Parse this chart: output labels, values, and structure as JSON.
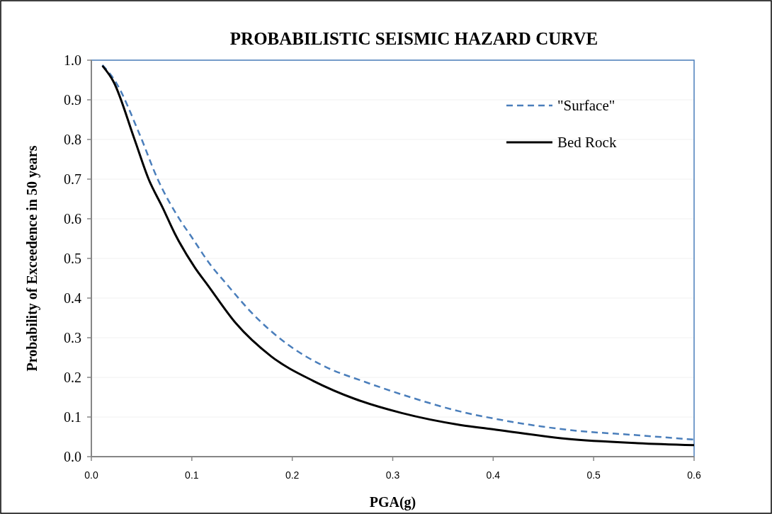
{
  "chart_data": {
    "type": "line",
    "title": "PROBABILISTIC SEISMIC HAZARD CURVE",
    "xlabel": "PGA(g)",
    "ylabel": "Probability of Exceedence in 50 years",
    "xlim": [
      0,
      0.6
    ],
    "xticks": [
      {
        "value": 0,
        "label": "0.0"
      },
      0.1,
      0.2,
      0.3,
      0.4,
      0.5,
      0.6
    ],
    "ylim": [
      0,
      1
    ],
    "yticks": [
      {
        "value": 0,
        "label": "0.0"
      },
      0.1,
      0.2,
      0.3,
      0.4,
      0.5,
      0.6,
      0.7,
      0.8,
      0.9,
      {
        "value": 1,
        "label": "1.0"
      }
    ],
    "grid": "y",
    "legend": "top right",
    "marker": "none",
    "series": [
      {
        "name": "\"Surface\"",
        "color": "#4a7ebb",
        "line_style": "dashed",
        "x": [
          0.011,
          0.024,
          0.048,
          0.066,
          0.088,
          0.099,
          0.12,
          0.132,
          0.163,
          0.196,
          0.231,
          0.273,
          0.32,
          0.367,
          0.403,
          0.473,
          0.544,
          0.6
        ],
        "values": [
          0.988,
          0.946,
          0.813,
          0.7,
          0.598,
          0.557,
          0.479,
          0.443,
          0.354,
          0.282,
          0.229,
          0.188,
          0.148,
          0.114,
          0.095,
          0.068,
          0.054,
          0.043
        ]
      },
      {
        "name": "Bed Rock",
        "color": "#000000",
        "line_style": "solid",
        "x": [
          0.011,
          0.022,
          0.043,
          0.057,
          0.071,
          0.083,
          0.103,
          0.116,
          0.144,
          0.179,
          0.221,
          0.262,
          0.309,
          0.367,
          0.403,
          0.473,
          0.544,
          0.6
        ],
        "values": [
          0.986,
          0.946,
          0.8,
          0.7,
          0.628,
          0.563,
          0.477,
          0.432,
          0.336,
          0.253,
          0.191,
          0.146,
          0.11,
          0.08,
          0.068,
          0.045,
          0.034,
          0.029
        ]
      }
    ]
  }
}
